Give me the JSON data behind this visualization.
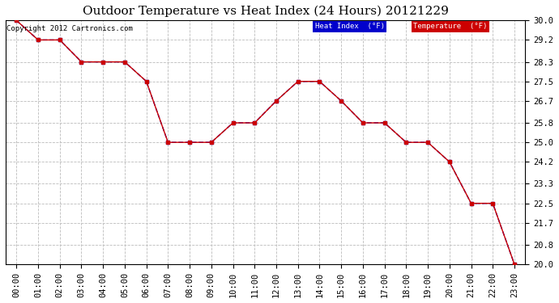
{
  "title": "Outdoor Temperature vs Heat Index (24 Hours) 20121229",
  "copyright_text": "Copyright 2012 Cartronics.com",
  "x_labels": [
    "00:00",
    "01:00",
    "02:00",
    "03:00",
    "04:00",
    "05:00",
    "06:00",
    "07:00",
    "08:00",
    "09:00",
    "10:00",
    "11:00",
    "12:00",
    "13:00",
    "14:00",
    "15:00",
    "16:00",
    "17:00",
    "18:00",
    "19:00",
    "20:00",
    "21:00",
    "22:00",
    "23:00"
  ],
  "temperature": [
    30.0,
    29.2,
    29.2,
    28.3,
    28.3,
    28.3,
    27.5,
    25.0,
    25.0,
    25.0,
    25.8,
    25.8,
    26.7,
    27.5,
    27.5,
    26.7,
    25.8,
    25.8,
    25.0,
    25.0,
    24.2,
    22.5,
    22.5,
    20.0
  ],
  "heat_index": [
    30.0,
    29.2,
    29.2,
    28.3,
    28.3,
    28.3,
    27.5,
    25.0,
    25.0,
    25.0,
    25.8,
    25.8,
    26.7,
    27.5,
    27.5,
    26.7,
    25.8,
    25.8,
    25.0,
    25.0,
    24.2,
    22.5,
    22.5,
    20.0
  ],
  "ylim": [
    20.0,
    30.0
  ],
  "yticks": [
    20.0,
    20.8,
    21.7,
    22.5,
    23.3,
    24.2,
    25.0,
    25.8,
    26.7,
    27.5,
    28.3,
    29.2,
    30.0
  ],
  "temp_color": "#cc0000",
  "heat_index_color": "#0000cc",
  "bg_color": "#ffffff",
  "plot_bg_color": "#ffffff",
  "grid_color": "#bbbbbb",
  "legend_heat_bg": "#0000cc",
  "legend_temp_bg": "#cc0000",
  "legend_text_color": "#ffffff",
  "title_fontsize": 11,
  "copyright_fontsize": 6.5,
  "tick_fontsize": 7.5
}
